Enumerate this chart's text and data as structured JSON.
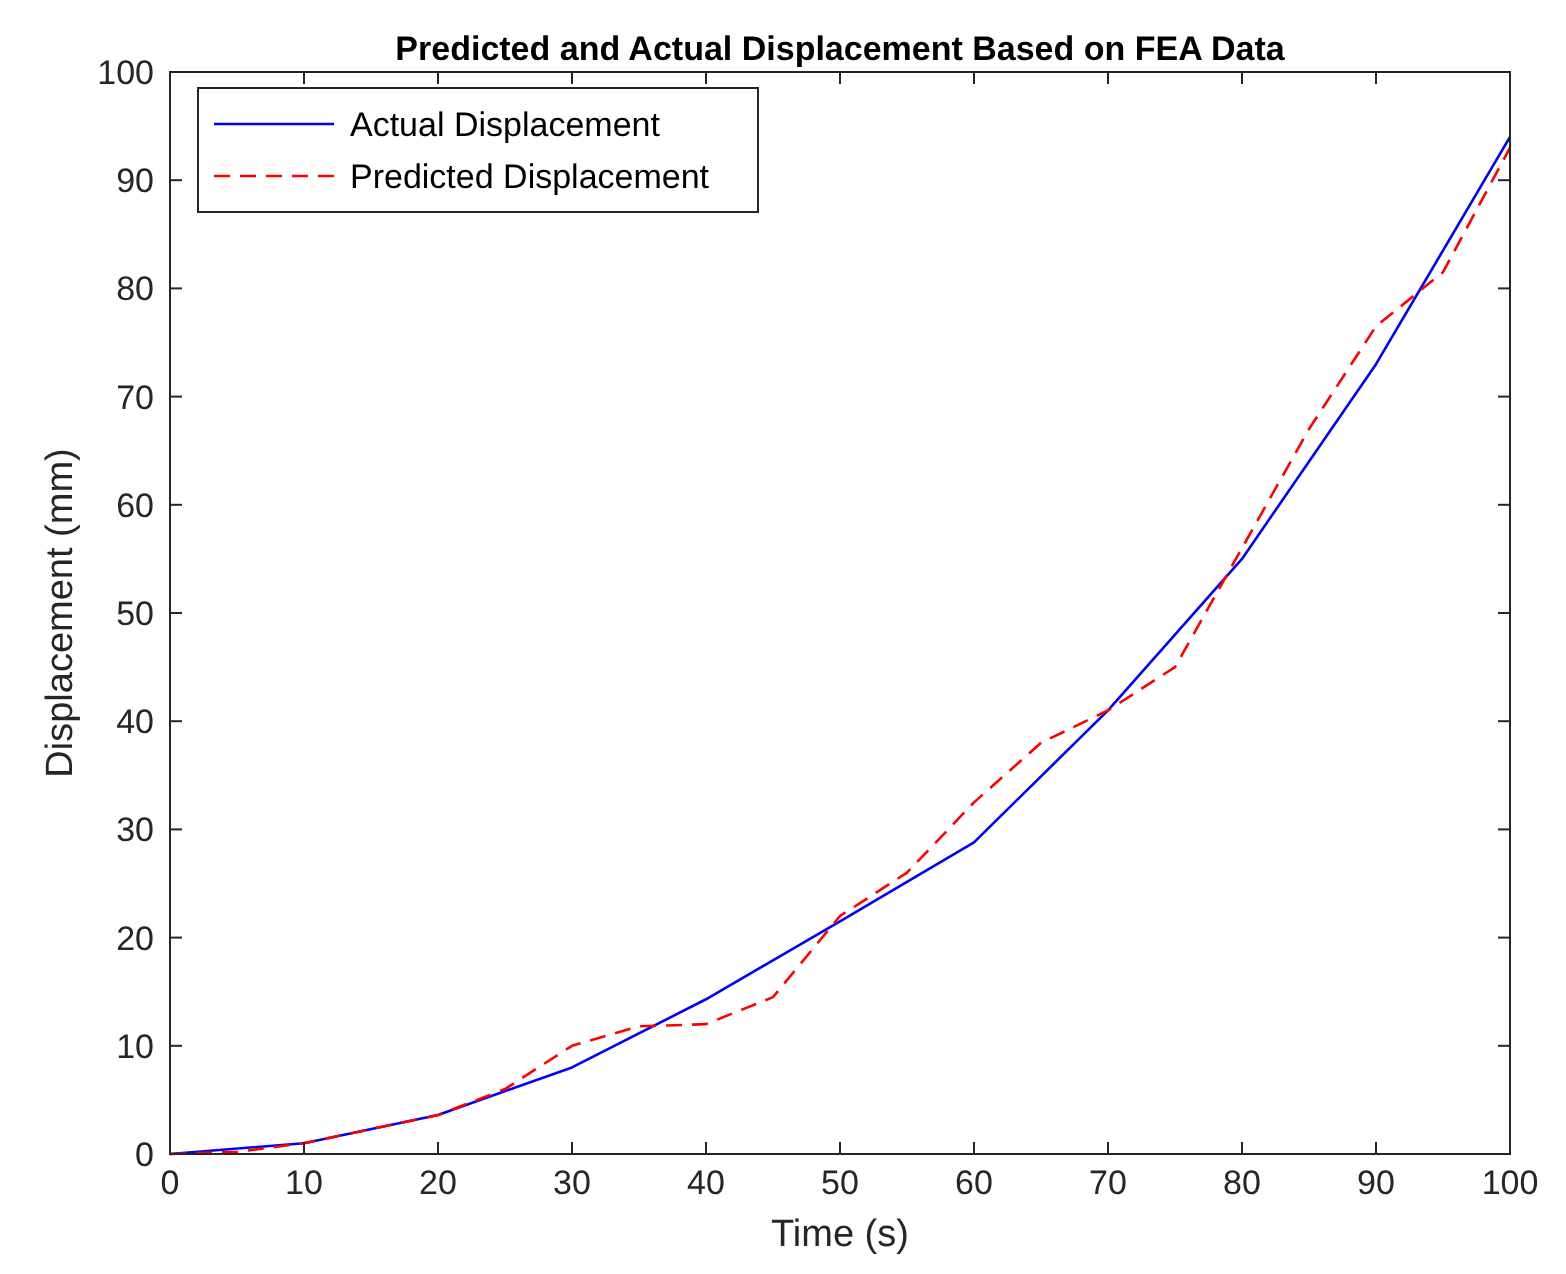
{
  "chart_data": {
    "type": "line",
    "title": "Predicted and Actual Displacement Based on FEA Data",
    "xlabel": "Time (s)",
    "ylabel": "Displacement (mm)",
    "xlim": [
      0,
      100
    ],
    "xticks": [
      0,
      10,
      20,
      30,
      40,
      50,
      60,
      70,
      80,
      90,
      100
    ],
    "ylim": [
      0,
      100
    ],
    "yticks": [
      0,
      10,
      20,
      30,
      40,
      50,
      60,
      70,
      80,
      90,
      100
    ],
    "grid": false,
    "legend": "top left",
    "series": [
      {
        "name": "Actual Displacement",
        "color": "#0000ff",
        "line_style": "solid",
        "x": [
          0,
          10,
          20,
          30,
          40,
          50,
          60,
          70,
          80,
          90,
          100
        ],
        "values": [
          0,
          1,
          3.6,
          8,
          14.3,
          21.5,
          28.8,
          41,
          55,
          73,
          94
        ]
      },
      {
        "name": "Predicted Displacement",
        "color": "#ff0000",
        "line_style": "dashed",
        "x": [
          0,
          5,
          10,
          15,
          20,
          25,
          30,
          35,
          40,
          45,
          50,
          55,
          60,
          65,
          70,
          75,
          80,
          85,
          90,
          95,
          100
        ],
        "values": [
          0,
          0.2,
          1,
          2.3,
          3.6,
          6,
          10,
          11.8,
          12,
          14.5,
          22,
          26,
          32.5,
          38,
          41,
          45,
          56,
          67,
          76.5,
          81.5,
          93
        ]
      }
    ]
  }
}
